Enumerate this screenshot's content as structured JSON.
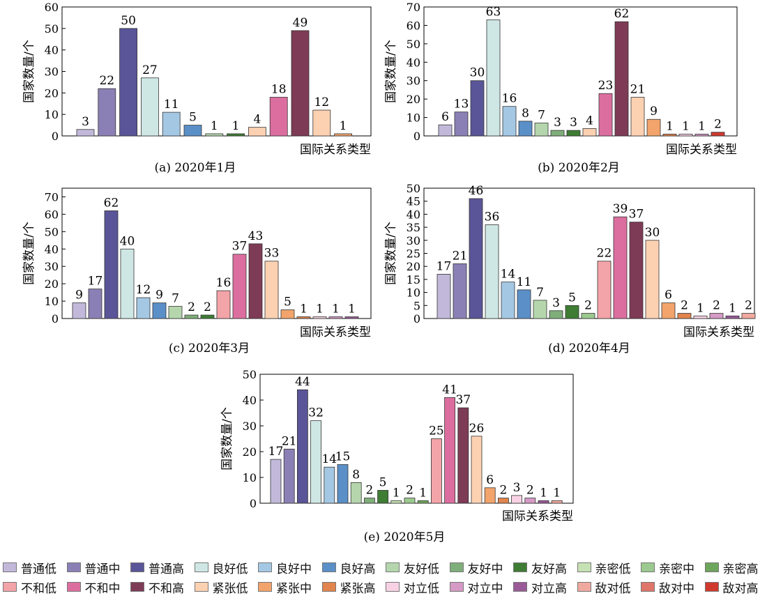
{
  "palette": {
    "普通低": "#c2b9da",
    "普通中": "#8b80b5",
    "普通高": "#5a5598",
    "良好低": "#cfe7e4",
    "良好中": "#a4c8e4",
    "良好高": "#5b8fc7",
    "友好低": "#b5d6ad",
    "友好中": "#7fae7a",
    "友好高": "#3e7d33",
    "亲密低": "#c6e2b4",
    "亲密中": "#9cc98f",
    "亲密高": "#6ea55c",
    "不和低": "#f3a4a8",
    "不和中": "#dc6e9f",
    "不和高": "#7e3b55",
    "紧张低": "#fcd1b2",
    "紧张中": "#f2a46c",
    "紧张高": "#e1844d",
    "对立低": "#f8d2e4",
    "对立中": "#d59ac5",
    "对立高": "#9a5a98",
    "敌对低": "#f0a99f",
    "敌对中": "#e0766a",
    "敌对高": "#d03a2e"
  },
  "legend": {
    "row1": [
      "普通低",
      "普通中",
      "普通高",
      "良好低",
      "良好中",
      "良好高",
      "友好低",
      "友好中",
      "友好高",
      "亲密低",
      "亲密中",
      "亲密高"
    ],
    "row2": [
      "不和低",
      "不和中",
      "不和高",
      "紧张低",
      "紧张中",
      "紧张高",
      "对立低",
      "对立中",
      "对立高",
      "敌对低",
      "敌对中",
      "敌对高"
    ]
  },
  "chart_data": [
    {
      "type": "bar",
      "caption": "(a) 2020年1月",
      "ylabel": "国家数量/个",
      "xlabel": "国际关系类型",
      "ylim": [
        0,
        60
      ],
      "yticks": [
        0,
        10,
        20,
        30,
        40,
        50,
        60
      ],
      "categories": [
        "普通低",
        "普通中",
        "普通高",
        "良好低",
        "良好中",
        "良好高",
        "友好低",
        "友好高",
        "紧张低",
        "不和中",
        "不和高",
        "紧张低",
        "紧张中"
      ],
      "values": [
        3,
        22,
        50,
        27,
        11,
        5,
        1,
        1,
        4,
        18,
        49,
        12,
        1
      ]
    },
    {
      "type": "bar",
      "caption": "(b) 2020年2月",
      "ylabel": "国家数量/个",
      "xlabel": "国际关系类型",
      "ylim": [
        0,
        70
      ],
      "yticks": [
        0,
        10,
        20,
        30,
        40,
        50,
        60,
        70
      ],
      "categories": [
        "普通低",
        "普通中",
        "普通高",
        "良好低",
        "良好中",
        "良好高",
        "友好低",
        "友好中",
        "友好高",
        "紧张低",
        "不和中",
        "不和高",
        "紧张低",
        "紧张中",
        "紧张高",
        "对立低",
        "对立中",
        "敌对高"
      ],
      "values": [
        6,
        13,
        30,
        63,
        16,
        8,
        7,
        3,
        3,
        4,
        23,
        62,
        21,
        9,
        1,
        1,
        1,
        2
      ]
    },
    {
      "type": "bar",
      "caption": "(c) 2020年3月",
      "ylabel": "国家数量/个",
      "xlabel": "国际关系类型",
      "ylim": [
        0,
        75
      ],
      "yticks": [
        0,
        10,
        20,
        30,
        40,
        50,
        60,
        70
      ],
      "categories": [
        "普通低",
        "普通中",
        "普通高",
        "良好低",
        "良好中",
        "良好高",
        "友好低",
        "友好中",
        "友好高",
        "不和低",
        "不和中",
        "不和高",
        "紧张低",
        "紧张中",
        "紧张高",
        "对立低",
        "对立中",
        "对立高"
      ],
      "values": [
        9,
        17,
        62,
        40,
        12,
        9,
        7,
        2,
        2,
        16,
        37,
        43,
        33,
        5,
        1,
        1,
        1,
        1
      ]
    },
    {
      "type": "bar",
      "caption": "(d) 2020年4月",
      "ylabel": "国家数量/个",
      "xlabel": "国际关系类型",
      "ylim": [
        0,
        50
      ],
      "yticks": [
        0,
        5,
        10,
        15,
        20,
        25,
        30,
        35,
        40,
        45,
        50
      ],
      "categories": [
        "普通低",
        "普通中",
        "普通高",
        "良好低",
        "良好中",
        "良好高",
        "友好低",
        "友好中",
        "友好高",
        "亲密中",
        "不和低",
        "不和中",
        "不和高",
        "紧张低",
        "紧张中",
        "紧张高",
        "对立低",
        "对立中",
        "对立高",
        "敌对低"
      ],
      "values": [
        17,
        21,
        46,
        36,
        14,
        11,
        7,
        3,
        5,
        2,
        22,
        39,
        37,
        30,
        6,
        2,
        1,
        2,
        1,
        2
      ]
    },
    {
      "type": "bar",
      "caption": "(e) 2020年5月",
      "ylabel": "国家数量/个",
      "xlabel": "国际关系类型",
      "ylim": [
        0,
        50
      ],
      "yticks": [
        0,
        10,
        20,
        30,
        40,
        50
      ],
      "categories": [
        "普通低",
        "普通中",
        "普通高",
        "良好低",
        "良好中",
        "良好高",
        "友好低",
        "友好中",
        "友好高",
        "亲密低",
        "亲密中",
        "亲密高",
        "不和低",
        "不和中",
        "不和高",
        "紧张低",
        "紧张中",
        "紧张高",
        "对立低",
        "对立中",
        "对立高",
        "敌对低"
      ],
      "values": [
        17,
        21,
        44,
        32,
        14,
        15,
        8,
        2,
        5,
        1,
        2,
        1,
        25,
        41,
        37,
        26,
        6,
        2,
        3,
        2,
        1,
        1
      ]
    }
  ]
}
